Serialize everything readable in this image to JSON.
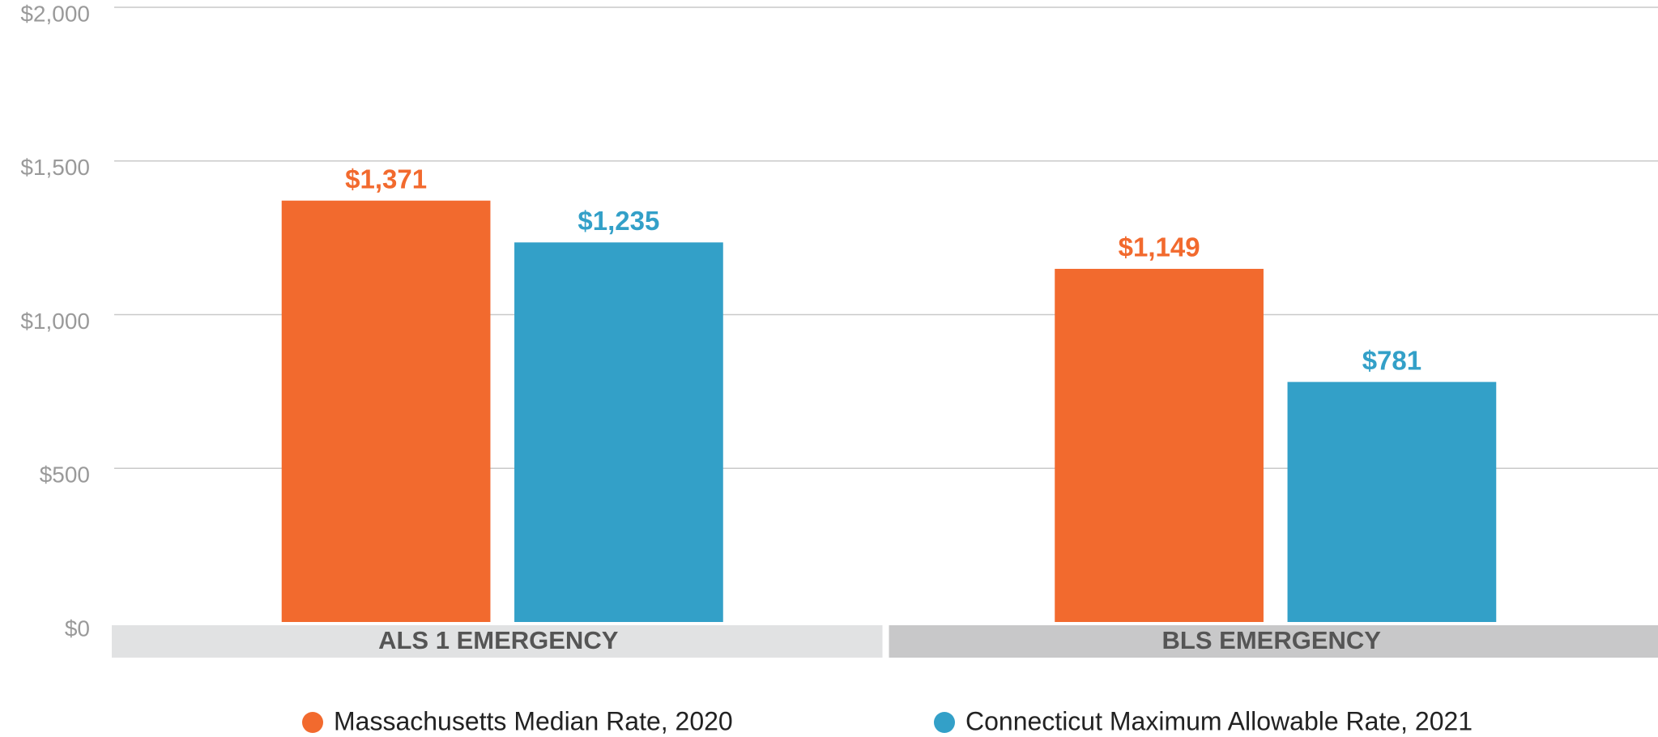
{
  "chart_data": {
    "type": "bar",
    "categories": [
      "ALS 1 EMERGENCY",
      "BLS EMERGENCY"
    ],
    "series": [
      {
        "name": "Massachusetts Median Rate, 2020",
        "color": "#f26a2e",
        "values": [
          1371,
          1149
        ],
        "value_labels": [
          "$1,371",
          "$1,149"
        ]
      },
      {
        "name": "Connecticut Maximum Allowable Rate, 2021",
        "color": "#33a0c8",
        "values": [
          1235,
          781
        ],
        "value_labels": [
          "$1,235",
          "$781"
        ]
      }
    ],
    "ylim": [
      0,
      2000
    ],
    "yticks": [
      {
        "value": 0,
        "label": "$0"
      },
      {
        "value": 500,
        "label": "$500"
      },
      {
        "value": 1000,
        "label": "$1,000"
      },
      {
        "value": 1500,
        "label": "$1,500"
      },
      {
        "value": 2000,
        "label": "$2,000"
      }
    ],
    "grid": true
  }
}
